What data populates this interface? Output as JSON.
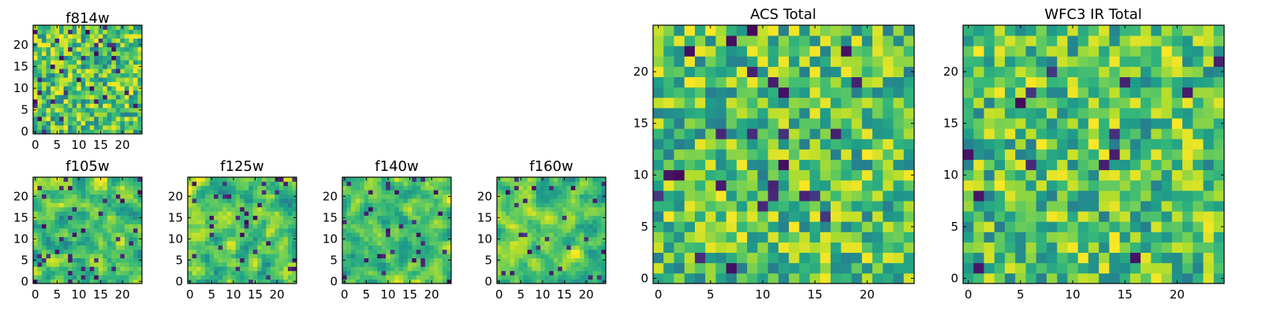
{
  "colormap": {
    "name": "viridis",
    "stops": [
      "#440154",
      "#482878",
      "#3e4989",
      "#31688e",
      "#26828e",
      "#1f9e89",
      "#35b779",
      "#6ece58",
      "#b5de2b",
      "#fde725"
    ]
  },
  "chart_data": [
    {
      "type": "heatmap",
      "title": "f814w",
      "grid_size": 25,
      "xticks": [
        "0",
        "5",
        "10",
        "15",
        "20"
      ],
      "yticks": [
        "0",
        "5",
        "10",
        "15",
        "20"
      ],
      "xlim": [
        0,
        24
      ],
      "ylim": [
        0,
        24
      ],
      "seed": 11,
      "smooth": 0,
      "low_frac": 0.06
    },
    {
      "type": "heatmap",
      "title": "f105w",
      "grid_size": 25,
      "xticks": [
        "0",
        "5",
        "10",
        "15",
        "20"
      ],
      "yticks": [
        "0",
        "5",
        "10",
        "15",
        "20"
      ],
      "xlim": [
        0,
        24
      ],
      "ylim": [
        0,
        24
      ],
      "seed": 23,
      "smooth": 1,
      "low_frac": 0.05
    },
    {
      "type": "heatmap",
      "title": "f125w",
      "grid_size": 25,
      "xticks": [
        "0",
        "5",
        "10",
        "15",
        "20"
      ],
      "yticks": [
        "0",
        "5",
        "10",
        "15",
        "20"
      ],
      "xlim": [
        0,
        24
      ],
      "ylim": [
        0,
        24
      ],
      "seed": 37,
      "smooth": 1,
      "low_frac": 0.06
    },
    {
      "type": "heatmap",
      "title": "f140w",
      "grid_size": 25,
      "xticks": [
        "0",
        "5",
        "10",
        "15",
        "20"
      ],
      "yticks": [
        "0",
        "5",
        "10",
        "15",
        "20"
      ],
      "xlim": [
        0,
        24
      ],
      "ylim": [
        0,
        24
      ],
      "seed": 41,
      "smooth": 1,
      "low_frac": 0.06
    },
    {
      "type": "heatmap",
      "title": "f160w",
      "grid_size": 25,
      "xticks": [
        "0",
        "5",
        "10",
        "15",
        "20"
      ],
      "yticks": [
        "0",
        "5",
        "10",
        "15",
        "20"
      ],
      "xlim": [
        0,
        24
      ],
      "ylim": [
        0,
        24
      ],
      "seed": 53,
      "smooth": 1,
      "low_frac": 0.05
    },
    {
      "type": "heatmap",
      "title": "ACS Total",
      "grid_size": 25,
      "xticks": [
        "0",
        "5",
        "10",
        "15",
        "20"
      ],
      "yticks": [
        "0",
        "5",
        "10",
        "15",
        "20"
      ],
      "xlim": [
        0,
        24
      ],
      "ylim": [
        0,
        24
      ],
      "seed": 67,
      "smooth": 0,
      "low_frac": 0.03
    },
    {
      "type": "heatmap",
      "title": "WFC3 IR Total",
      "grid_size": 25,
      "xticks": [
        "0",
        "5",
        "10",
        "15",
        "20"
      ],
      "yticks": [
        "0",
        "5",
        "10",
        "15",
        "20"
      ],
      "xlim": [
        0,
        24
      ],
      "ylim": [
        0,
        24
      ],
      "seed": 79,
      "smooth": 0,
      "low_frac": 0.03
    }
  ]
}
